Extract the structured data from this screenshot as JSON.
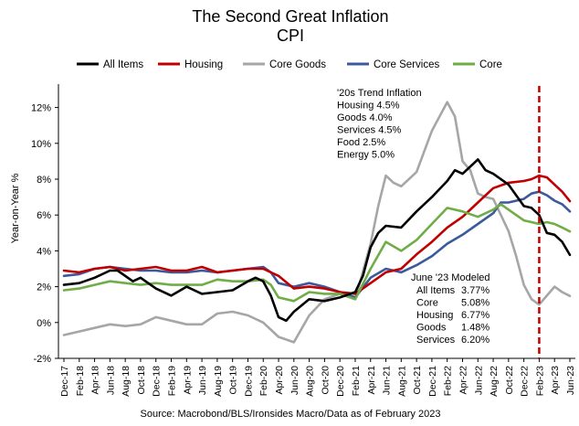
{
  "chart_data": {
    "type": "line",
    "title": "The Second Great Inflation",
    "subtitle": "CPI",
    "ylabel": "Year-on-Year %",
    "xlabel": "",
    "ylim": [
      -2,
      13
    ],
    "yticks": [
      -2,
      0,
      2,
      4,
      6,
      8,
      10,
      12
    ],
    "ytick_labels": [
      "-2%",
      "0%",
      "2%",
      "4%",
      "6%",
      "8%",
      "10%",
      "12%"
    ],
    "grid": false,
    "legend_position": "top",
    "x_start": "2017-12",
    "x_end": "2023-06",
    "xtick_labels": [
      "Dec-17",
      "Feb-18",
      "Apr-18",
      "Jun-18",
      "Aug-18",
      "Oct-18",
      "Dec-18",
      "Feb-19",
      "Apr-19",
      "Jun-19",
      "Aug-19",
      "Oct-19",
      "Dec-19",
      "Feb-20",
      "Apr-20",
      "Jun-20",
      "Aug-20",
      "Oct-20",
      "Dec-20",
      "Feb-21",
      "Apr-21",
      "Jun-21",
      "Aug-21",
      "Oct-21",
      "Dec-21",
      "Feb-22",
      "Apr-22",
      "Jun-22",
      "Aug-22",
      "Oct-22",
      "Dec-22",
      "Feb-23",
      "Apr-23",
      "Jun-23"
    ],
    "vline": {
      "x": "2023-02",
      "color": "#c00000",
      "style": "dashed"
    },
    "series": [
      {
        "name": "All Items",
        "color": "#000000",
        "points": [
          [
            "2017-12",
            2.1
          ],
          [
            "2018-02",
            2.2
          ],
          [
            "2018-04",
            2.5
          ],
          [
            "2018-06",
            2.9
          ],
          [
            "2018-07",
            2.9
          ],
          [
            "2018-09",
            2.3
          ],
          [
            "2018-10",
            2.5
          ],
          [
            "2018-12",
            1.9
          ],
          [
            "2019-02",
            1.5
          ],
          [
            "2019-04",
            2.0
          ],
          [
            "2019-06",
            1.6
          ],
          [
            "2019-08",
            1.7
          ],
          [
            "2019-10",
            1.8
          ],
          [
            "2019-12",
            2.3
          ],
          [
            "2020-01",
            2.5
          ],
          [
            "2020-02",
            2.3
          ],
          [
            "2020-03",
            1.5
          ],
          [
            "2020-04",
            0.3
          ],
          [
            "2020-05",
            0.1
          ],
          [
            "2020-06",
            0.6
          ],
          [
            "2020-08",
            1.3
          ],
          [
            "2020-10",
            1.2
          ],
          [
            "2020-12",
            1.4
          ],
          [
            "2021-02",
            1.7
          ],
          [
            "2021-03",
            2.6
          ],
          [
            "2021-04",
            4.2
          ],
          [
            "2021-05",
            5.0
          ],
          [
            "2021-06",
            5.4
          ],
          [
            "2021-08",
            5.3
          ],
          [
            "2021-10",
            6.2
          ],
          [
            "2021-12",
            7.0
          ],
          [
            "2022-02",
            7.9
          ],
          [
            "2022-03",
            8.5
          ],
          [
            "2022-04",
            8.3
          ],
          [
            "2022-06",
            9.1
          ],
          [
            "2022-07",
            8.5
          ],
          [
            "2022-08",
            8.3
          ],
          [
            "2022-10",
            7.7
          ],
          [
            "2022-11",
            7.1
          ],
          [
            "2022-12",
            6.5
          ],
          [
            "2023-01",
            6.4
          ],
          [
            "2023-02",
            6.0
          ],
          [
            "2023-03",
            5.0
          ],
          [
            "2023-04",
            4.9
          ],
          [
            "2023-05",
            4.5
          ],
          [
            "2023-06",
            3.77
          ]
        ]
      },
      {
        "name": "Housing",
        "color": "#c00000",
        "points": [
          [
            "2017-12",
            2.9
          ],
          [
            "2018-02",
            2.8
          ],
          [
            "2018-04",
            3.0
          ],
          [
            "2018-06",
            3.1
          ],
          [
            "2018-08",
            2.9
          ],
          [
            "2018-10",
            3.0
          ],
          [
            "2018-12",
            3.1
          ],
          [
            "2019-02",
            2.9
          ],
          [
            "2019-04",
            2.9
          ],
          [
            "2019-06",
            3.1
          ],
          [
            "2019-08",
            2.8
          ],
          [
            "2019-10",
            2.9
          ],
          [
            "2019-12",
            3.0
          ],
          [
            "2020-02",
            3.0
          ],
          [
            "2020-04",
            2.6
          ],
          [
            "2020-06",
            1.9
          ],
          [
            "2020-08",
            2.0
          ],
          [
            "2020-10",
            1.9
          ],
          [
            "2020-12",
            1.7
          ],
          [
            "2021-02",
            1.6
          ],
          [
            "2021-04",
            2.2
          ],
          [
            "2021-06",
            2.8
          ],
          [
            "2021-08",
            3.0
          ],
          [
            "2021-10",
            3.8
          ],
          [
            "2021-12",
            4.5
          ],
          [
            "2022-02",
            5.3
          ],
          [
            "2022-04",
            5.9
          ],
          [
            "2022-06",
            6.7
          ],
          [
            "2022-08",
            7.5
          ],
          [
            "2022-10",
            7.8
          ],
          [
            "2022-12",
            7.9
          ],
          [
            "2023-01",
            8.0
          ],
          [
            "2023-02",
            8.2
          ],
          [
            "2023-03",
            8.1
          ],
          [
            "2023-04",
            7.7
          ],
          [
            "2023-05",
            7.3
          ],
          [
            "2023-06",
            6.77
          ]
        ]
      },
      {
        "name": "Core Goods",
        "color": "#a6a6a6",
        "points": [
          [
            "2017-12",
            -0.7
          ],
          [
            "2018-02",
            -0.5
          ],
          [
            "2018-04",
            -0.3
          ],
          [
            "2018-06",
            -0.1
          ],
          [
            "2018-08",
            -0.2
          ],
          [
            "2018-10",
            -0.1
          ],
          [
            "2018-12",
            0.3
          ],
          [
            "2019-02",
            0.1
          ],
          [
            "2019-04",
            -0.1
          ],
          [
            "2019-06",
            -0.1
          ],
          [
            "2019-08",
            0.5
          ],
          [
            "2019-10",
            0.6
          ],
          [
            "2019-12",
            0.4
          ],
          [
            "2020-02",
            0.0
          ],
          [
            "2020-04",
            -0.8
          ],
          [
            "2020-06",
            -1.1
          ],
          [
            "2020-08",
            0.4
          ],
          [
            "2020-10",
            1.3
          ],
          [
            "2020-12",
            1.6
          ],
          [
            "2021-02",
            1.3
          ],
          [
            "2021-04",
            4.4
          ],
          [
            "2021-05",
            6.5
          ],
          [
            "2021-06",
            8.2
          ],
          [
            "2021-07",
            7.8
          ],
          [
            "2021-08",
            7.6
          ],
          [
            "2021-10",
            8.4
          ],
          [
            "2021-12",
            10.7
          ],
          [
            "2022-02",
            12.3
          ],
          [
            "2022-03",
            11.5
          ],
          [
            "2022-04",
            9.0
          ],
          [
            "2022-05",
            8.5
          ],
          [
            "2022-06",
            7.2
          ],
          [
            "2022-07",
            7.0
          ],
          [
            "2022-08",
            6.9
          ],
          [
            "2022-10",
            5.1
          ],
          [
            "2022-11",
            3.7
          ],
          [
            "2022-12",
            2.1
          ],
          [
            "2023-01",
            1.3
          ],
          [
            "2023-02",
            1.0
          ],
          [
            "2023-03",
            1.5
          ],
          [
            "2023-04",
            2.0
          ],
          [
            "2023-05",
            1.7
          ],
          [
            "2023-06",
            1.48
          ]
        ]
      },
      {
        "name": "Core Services",
        "color": "#3a5a9c",
        "points": [
          [
            "2017-12",
            2.6
          ],
          [
            "2018-02",
            2.7
          ],
          [
            "2018-04",
            3.0
          ],
          [
            "2018-06",
            3.1
          ],
          [
            "2018-08",
            3.0
          ],
          [
            "2018-10",
            2.9
          ],
          [
            "2018-12",
            2.9
          ],
          [
            "2019-02",
            2.8
          ],
          [
            "2019-04",
            2.8
          ],
          [
            "2019-06",
            2.9
          ],
          [
            "2019-08",
            2.8
          ],
          [
            "2019-10",
            2.9
          ],
          [
            "2019-12",
            3.0
          ],
          [
            "2020-02",
            3.1
          ],
          [
            "2020-03",
            2.8
          ],
          [
            "2020-04",
            2.2
          ],
          [
            "2020-06",
            2.0
          ],
          [
            "2020-08",
            2.2
          ],
          [
            "2020-10",
            2.0
          ],
          [
            "2020-12",
            1.7
          ],
          [
            "2021-02",
            1.4
          ],
          [
            "2021-04",
            2.5
          ],
          [
            "2021-06",
            3.0
          ],
          [
            "2021-08",
            2.8
          ],
          [
            "2021-10",
            3.2
          ],
          [
            "2021-12",
            3.7
          ],
          [
            "2022-02",
            4.4
          ],
          [
            "2022-04",
            4.9
          ],
          [
            "2022-06",
            5.5
          ],
          [
            "2022-08",
            6.1
          ],
          [
            "2022-09",
            6.7
          ],
          [
            "2022-10",
            6.7
          ],
          [
            "2022-12",
            6.9
          ],
          [
            "2023-01",
            7.2
          ],
          [
            "2023-02",
            7.3
          ],
          [
            "2023-03",
            7.1
          ],
          [
            "2023-04",
            6.8
          ],
          [
            "2023-05",
            6.6
          ],
          [
            "2023-06",
            6.2
          ]
        ]
      },
      {
        "name": "Core",
        "color": "#70ad47",
        "points": [
          [
            "2017-12",
            1.8
          ],
          [
            "2018-02",
            1.9
          ],
          [
            "2018-04",
            2.1
          ],
          [
            "2018-06",
            2.3
          ],
          [
            "2018-08",
            2.2
          ],
          [
            "2018-10",
            2.1
          ],
          [
            "2018-12",
            2.2
          ],
          [
            "2019-02",
            2.1
          ],
          [
            "2019-04",
            2.1
          ],
          [
            "2019-06",
            2.1
          ],
          [
            "2019-08",
            2.4
          ],
          [
            "2019-10",
            2.3
          ],
          [
            "2019-12",
            2.3
          ],
          [
            "2020-02",
            2.4
          ],
          [
            "2020-03",
            2.1
          ],
          [
            "2020-04",
            1.4
          ],
          [
            "2020-06",
            1.2
          ],
          [
            "2020-08",
            1.7
          ],
          [
            "2020-10",
            1.6
          ],
          [
            "2020-12",
            1.6
          ],
          [
            "2021-02",
            1.3
          ],
          [
            "2021-04",
            3.0
          ],
          [
            "2021-06",
            4.5
          ],
          [
            "2021-08",
            4.0
          ],
          [
            "2021-10",
            4.6
          ],
          [
            "2021-12",
            5.5
          ],
          [
            "2022-02",
            6.4
          ],
          [
            "2022-04",
            6.2
          ],
          [
            "2022-06",
            5.9
          ],
          [
            "2022-08",
            6.3
          ],
          [
            "2022-09",
            6.6
          ],
          [
            "2022-10",
            6.3
          ],
          [
            "2022-12",
            5.7
          ],
          [
            "2023-01",
            5.6
          ],
          [
            "2023-02",
            5.5
          ],
          [
            "2023-03",
            5.6
          ],
          [
            "2023-04",
            5.5
          ],
          [
            "2023-05",
            5.3
          ],
          [
            "2023-06",
            5.08
          ]
        ]
      }
    ],
    "annotations": {
      "trend": [
        "'20s Trend Inflation",
        "Housing 4.5%",
        "Goods 4.0%",
        "Services 4.5%",
        "Food 2.5%",
        "Energy 5.0%"
      ],
      "modeled_title": "June '23 Modeled",
      "modeled_labels": [
        "All Items",
        "Core",
        "Housing",
        "Goods",
        "Services"
      ],
      "modeled_values": [
        "3.77%",
        "5.08%",
        "6.77%",
        "1.48%",
        "6.20%"
      ]
    },
    "source": "Source: Macrobond/BLS/Ironsides Macro/Data as of February 2023"
  }
}
